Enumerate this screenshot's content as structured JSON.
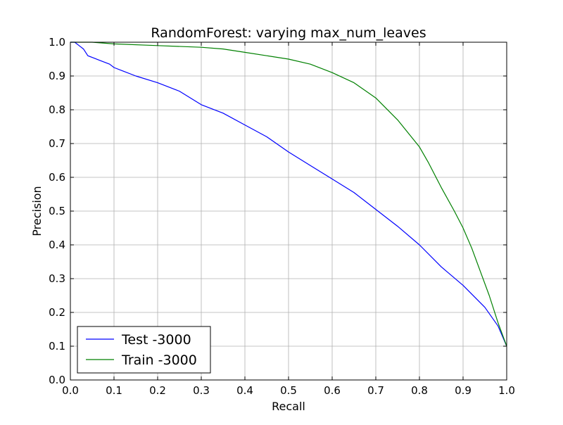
{
  "chart_data": {
    "type": "line",
    "title": "RandomForest: varying max_num_leaves",
    "xlabel": "Recall",
    "ylabel": "Precision",
    "xlim": [
      0.0,
      1.0
    ],
    "ylim": [
      0.0,
      1.0
    ],
    "grid": true,
    "legend_position": "lower-left",
    "x_ticks": [
      "0.0",
      "0.1",
      "0.2",
      "0.3",
      "0.4",
      "0.5",
      "0.6",
      "0.7",
      "0.8",
      "0.9",
      "1.0"
    ],
    "y_ticks": [
      "0.0",
      "0.1",
      "0.2",
      "0.3",
      "0.4",
      "0.5",
      "0.6",
      "0.7",
      "0.8",
      "0.9",
      "1.0"
    ],
    "series": [
      {
        "name": "Test -3000",
        "color": "#0000ff",
        "x": [
          0.0,
          0.01,
          0.02,
          0.03,
          0.04,
          0.05,
          0.07,
          0.09,
          0.1,
          0.12,
          0.15,
          0.2,
          0.25,
          0.3,
          0.35,
          0.4,
          0.45,
          0.5,
          0.55,
          0.6,
          0.65,
          0.7,
          0.75,
          0.8,
          0.85,
          0.9,
          0.95,
          0.98,
          1.0
        ],
        "y": [
          1.0,
          1.0,
          0.99,
          0.98,
          0.96,
          0.955,
          0.945,
          0.935,
          0.925,
          0.915,
          0.9,
          0.88,
          0.855,
          0.815,
          0.79,
          0.755,
          0.72,
          0.675,
          0.635,
          0.595,
          0.555,
          0.505,
          0.455,
          0.4,
          0.335,
          0.28,
          0.215,
          0.16,
          0.1
        ]
      },
      {
        "name": "Train -3000",
        "color": "#008000",
        "x": [
          0.0,
          0.05,
          0.1,
          0.2,
          0.3,
          0.35,
          0.4,
          0.45,
          0.5,
          0.55,
          0.6,
          0.65,
          0.7,
          0.75,
          0.8,
          0.82,
          0.85,
          0.88,
          0.9,
          0.92,
          0.94,
          0.96,
          0.98,
          1.0
        ],
        "y": [
          1.0,
          1.0,
          0.995,
          0.99,
          0.985,
          0.98,
          0.97,
          0.96,
          0.95,
          0.935,
          0.91,
          0.88,
          0.835,
          0.77,
          0.69,
          0.645,
          0.57,
          0.5,
          0.45,
          0.39,
          0.32,
          0.25,
          0.17,
          0.1
        ]
      }
    ]
  }
}
